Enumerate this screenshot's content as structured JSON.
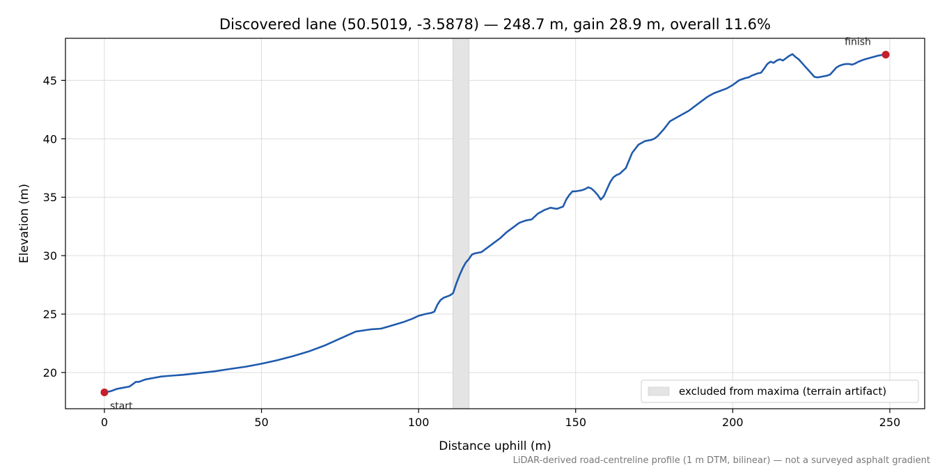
{
  "chart_data": {
    "type": "line",
    "title": "Discovered lane (50.5019, -3.5878) — 248.7 m, gain 28.9 m, overall 11.6%",
    "xlabel": "Distance uphill (m)",
    "ylabel": "Elevation (m)",
    "xlim": [
      -12.4,
      261.1
    ],
    "ylim": [
      16.9,
      48.6
    ],
    "xticks": [
      0,
      50,
      100,
      150,
      200,
      250
    ],
    "yticks": [
      20,
      25,
      30,
      35,
      40,
      45
    ],
    "grid": true,
    "legend_position": "bottom-right",
    "excluded_band": {
      "x0": 110.9,
      "x1": 116.1,
      "label": "excluded from maxima (terrain artifact)"
    },
    "start_label": "start",
    "finish_label": "finish",
    "footnote": "LiDAR-derived road-centreline profile (1 m DTM, bilinear) — not a surveyed asphalt gradient",
    "colors": {
      "line": "#1f5aad",
      "endpoint": "#c4202b",
      "band": "#e4e4e4"
    },
    "series": [
      {
        "x": [
          0,
          2,
          4,
          6,
          8,
          9,
          10,
          11,
          12,
          13,
          14,
          16,
          18,
          20,
          25,
          30,
          35,
          40,
          45,
          50,
          55,
          60,
          65,
          70,
          75,
          80,
          85,
          88,
          90,
          95,
          98,
          100,
          102,
          104,
          105,
          106,
          107,
          108,
          110,
          111,
          112,
          113,
          114,
          115,
          116,
          117,
          118,
          120,
          122,
          124,
          126,
          128,
          130,
          132,
          134,
          136,
          138,
          140,
          142,
          144,
          146,
          147,
          148,
          149,
          150,
          151,
          152,
          153,
          154,
          155,
          156,
          157,
          158,
          159,
          160,
          161,
          162,
          163,
          164,
          166,
          168,
          170,
          172,
          174,
          175,
          176,
          178,
          180,
          182,
          184,
          186,
          188,
          190,
          192,
          194,
          196,
          198,
          200,
          202,
          204,
          205,
          206,
          207,
          208,
          209,
          210,
          211,
          212,
          213,
          214,
          215,
          216,
          217,
          218,
          219,
          220,
          221,
          222,
          223,
          224,
          225,
          226,
          227,
          228,
          229,
          230,
          231,
          232,
          233,
          234,
          235,
          236,
          237,
          238,
          239,
          240,
          242,
          244,
          246,
          248,
          248.7
        ],
        "y": [
          18.3,
          18.4,
          18.6,
          18.7,
          18.8,
          19.0,
          19.2,
          19.2,
          19.3,
          19.4,
          19.45,
          19.55,
          19.65,
          19.7,
          19.8,
          19.95,
          20.1,
          20.3,
          20.5,
          20.75,
          21.05,
          21.4,
          21.8,
          22.3,
          22.9,
          23.5,
          23.7,
          23.75,
          23.9,
          24.3,
          24.6,
          24.85,
          25.0,
          25.1,
          25.2,
          25.8,
          26.2,
          26.4,
          26.6,
          26.8,
          27.6,
          28.3,
          28.9,
          29.4,
          29.7,
          30.1,
          30.2,
          30.3,
          30.7,
          31.1,
          31.5,
          32.0,
          32.4,
          32.8,
          33.0,
          33.1,
          33.6,
          33.9,
          34.1,
          34.0,
          34.2,
          34.8,
          35.2,
          35.5,
          35.5,
          35.55,
          35.6,
          35.7,
          35.85,
          35.75,
          35.5,
          35.2,
          34.8,
          35.1,
          35.7,
          36.3,
          36.7,
          36.9,
          37.0,
          37.5,
          38.8,
          39.5,
          39.8,
          39.9,
          40.0,
          40.2,
          40.8,
          41.5,
          41.8,
          42.1,
          42.4,
          42.8,
          43.2,
          43.6,
          43.9,
          44.1,
          44.3,
          44.6,
          45.0,
          45.2,
          45.25,
          45.4,
          45.5,
          45.6,
          45.65,
          46.0,
          46.4,
          46.6,
          46.5,
          46.7,
          46.8,
          46.7,
          46.9,
          47.1,
          47.25,
          47.0,
          46.8,
          46.5,
          46.2,
          45.9,
          45.6,
          45.3,
          45.25,
          45.3,
          45.35,
          45.4,
          45.5,
          45.8,
          46.1,
          46.25,
          46.35,
          46.4,
          46.4,
          46.35,
          46.45,
          46.6,
          46.8,
          46.95,
          47.1,
          47.2,
          47.2
        ]
      }
    ]
  }
}
